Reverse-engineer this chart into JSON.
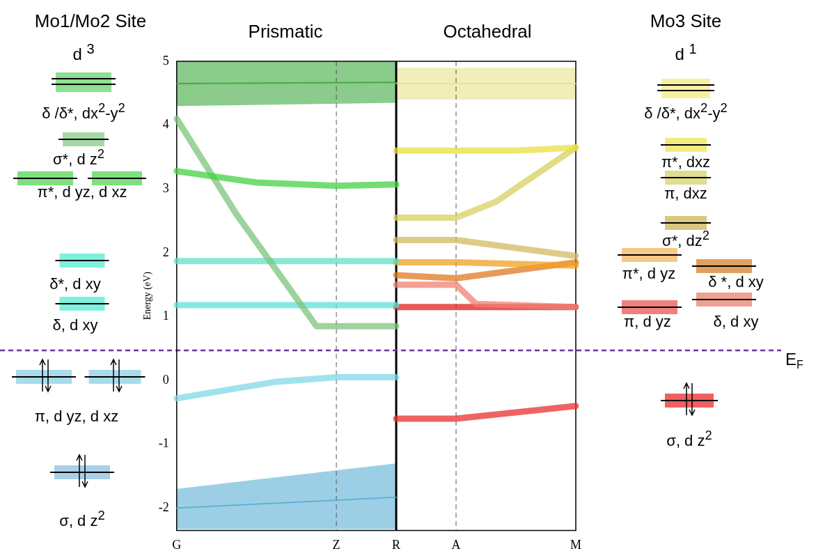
{
  "chart_data": {
    "type": "line",
    "ylabel": "Energy (eV)",
    "categories": [
      "G",
      null,
      null,
      null,
      null,
      null,
      null,
      null,
      "Z",
      null,
      null,
      "R",
      null,
      null,
      "A",
      null,
      null,
      null,
      null,
      null,
      "M"
    ],
    "ylim": [
      -2.35,
      5.0
    ],
    "yticks": [
      -2,
      -1,
      0,
      1,
      2,
      3,
      4,
      5
    ],
    "grid": false,
    "legend": false,
    "marker": "none",
    "ref_lines": [
      {
        "axis": "x",
        "value": "Z",
        "label": null,
        "color": "#555555",
        "line_style": "dashed"
      },
      {
        "axis": "x",
        "value": "R",
        "label": null,
        "color": "#000000",
        "line_style": "solid"
      },
      {
        "axis": "x",
        "value": "A",
        "label": null,
        "color": "#555555",
        "line_style": "dashed"
      },
      {
        "axis": "y",
        "value": 0.47,
        "label": "E$_{F}$",
        "color": "#7030a0",
        "line_style": "dashed"
      }
    ],
    "series": [
      {
        "color": "#2ca02c",
        "values": [
          4.65,
          null,
          null,
          null,
          null,
          null,
          null,
          null,
          null,
          null,
          null,
          4.67,
          null,
          null,
          null,
          null,
          null,
          null,
          null,
          null,
          null
        ],
        "lower": [
          4.3,
          null,
          null,
          null,
          null,
          null,
          null,
          null,
          null,
          null,
          null,
          4.35,
          null,
          null,
          null,
          null,
          null,
          null,
          null,
          null,
          null
        ],
        "upper": [
          5.0,
          null,
          null,
          null,
          null,
          null,
          null,
          null,
          null,
          null,
          null,
          5.0,
          null,
          null,
          null,
          null,
          null,
          null,
          null,
          null,
          null
        ]
      },
      {
        "color": "#44d044",
        "values": [
          3.28,
          null,
          null,
          null,
          3.1,
          null,
          null,
          null,
          3.05,
          null,
          null,
          3.07,
          null,
          null,
          null,
          null,
          null,
          null,
          null,
          null,
          null
        ]
      },
      {
        "color": "#7cc47c",
        "values": [
          4.1,
          null,
          null,
          2.6,
          null,
          null,
          null,
          0.85,
          null,
          null,
          null,
          0.85,
          null,
          null,
          null,
          null,
          null,
          null,
          null,
          null,
          null
        ]
      },
      {
        "color": "#5fe0c8",
        "values": [
          1.87,
          null,
          null,
          null,
          null,
          null,
          null,
          null,
          null,
          null,
          null,
          1.87,
          null,
          null,
          null,
          null,
          null,
          null,
          null,
          null,
          null
        ]
      },
      {
        "color": "#5fe0d8",
        "values": [
          1.18,
          null,
          null,
          null,
          null,
          null,
          null,
          null,
          null,
          null,
          null,
          1.18,
          null,
          null,
          null,
          null,
          null,
          null,
          null,
          null,
          null
        ]
      },
      {
        "color": "#7fd8e8",
        "values": [
          -0.28,
          null,
          null,
          null,
          null,
          -0.02,
          null,
          null,
          0.05,
          null,
          null,
          0.05,
          null,
          null,
          null,
          null,
          null,
          null,
          null,
          null,
          null
        ]
      },
      {
        "color": "#4aa8d0",
        "values": [
          -2.0,
          null,
          null,
          null,
          null,
          null,
          null,
          null,
          null,
          null,
          null,
          -1.83,
          null,
          null,
          null,
          null,
          null,
          null,
          null,
          null,
          null
        ],
        "lower": [
          -2.33,
          null,
          null,
          null,
          null,
          null,
          null,
          null,
          null,
          null,
          null,
          -2.33,
          null,
          null,
          null,
          null,
          null,
          null,
          null,
          null,
          null
        ],
        "upper": [
          -1.7,
          null,
          null,
          null,
          null,
          null,
          null,
          null,
          null,
          null,
          null,
          -1.3,
          null,
          null,
          null,
          null,
          null,
          null,
          null,
          null,
          null
        ]
      },
      {
        "color": "#e8e080",
        "values": [
          null,
          null,
          null,
          null,
          null,
          null,
          null,
          null,
          null,
          null,
          null,
          4.65,
          null,
          null,
          null,
          null,
          null,
          null,
          null,
          null,
          4.65
        ],
        "lower": [
          null,
          null,
          null,
          null,
          null,
          null,
          null,
          null,
          null,
          null,
          null,
          4.4,
          null,
          null,
          null,
          null,
          null,
          null,
          null,
          null,
          4.4
        ],
        "upper": [
          null,
          null,
          null,
          null,
          null,
          null,
          null,
          null,
          null,
          null,
          null,
          4.9,
          null,
          null,
          null,
          null,
          null,
          null,
          null,
          null,
          4.9
        ]
      },
      {
        "color": "#e8e040",
        "values": [
          null,
          null,
          null,
          null,
          null,
          null,
          null,
          null,
          null,
          null,
          null,
          3.6,
          null,
          null,
          null,
          null,
          null,
          3.6,
          null,
          null,
          3.65
        ]
      },
      {
        "color": "#d8d060",
        "values": [
          null,
          null,
          null,
          null,
          null,
          null,
          null,
          null,
          null,
          null,
          null,
          2.55,
          null,
          null,
          2.55,
          null,
          2.8,
          null,
          null,
          null,
          3.65
        ]
      },
      {
        "color": "#d4b860",
        "values": [
          null,
          null,
          null,
          null,
          null,
          null,
          null,
          null,
          null,
          null,
          null,
          2.2,
          null,
          null,
          2.2,
          null,
          null,
          null,
          null,
          null,
          1.95
        ]
      },
      {
        "color": "#f0a020",
        "values": [
          null,
          null,
          null,
          null,
          null,
          null,
          null,
          null,
          null,
          null,
          null,
          1.85,
          null,
          null,
          1.85,
          null,
          null,
          null,
          null,
          null,
          1.8
        ]
      },
      {
        "color": "#e07820",
        "values": [
          null,
          null,
          null,
          null,
          null,
          null,
          null,
          null,
          null,
          null,
          null,
          1.65,
          null,
          null,
          1.6,
          null,
          null,
          null,
          null,
          null,
          1.85
        ]
      },
      {
        "color": "#f08070",
        "values": [
          null,
          null,
          null,
          null,
          null,
          null,
          null,
          null,
          null,
          null,
          null,
          1.5,
          null,
          null,
          1.5,
          1.2,
          null,
          null,
          null,
          null,
          1.15
        ]
      },
      {
        "color": "#e02020",
        "values": [
          null,
          null,
          null,
          null,
          null,
          null,
          null,
          null,
          null,
          null,
          null,
          1.15,
          null,
          null,
          null,
          null,
          null,
          null,
          null,
          null,
          1.15
        ]
      },
      {
        "color": "#e83030",
        "values": [
          null,
          null,
          null,
          null,
          null,
          null,
          null,
          null,
          null,
          null,
          null,
          -0.6,
          null,
          null,
          -0.6,
          null,
          null,
          null,
          null,
          null,
          -0.4
        ]
      }
    ],
    "annotations": [
      "Prismatic",
      "Octahedral",
      "Mo1/Mo2 Site",
      "d $^{3}$",
      "δ /δ*, dx$^{2}$-y$^{2}$",
      "σ*, d z$^{2}$",
      "π*, d yz, d xz",
      "δ*, d xy",
      "δ, d xy",
      "π, d yz, d xz",
      "σ, d z$^{2}$",
      "Mo3 Site",
      "d $^{1}$",
      "δ /δ*, dx$^{2}$-y$^{2}$",
      "π*, dxz",
      "π, dxz",
      "σ*, dz$^{2}$",
      "π*, d yz",
      "δ *, d xy",
      "π, d yz",
      "δ, d xy",
      "σ, d z$^{2}$"
    ]
  }
}
